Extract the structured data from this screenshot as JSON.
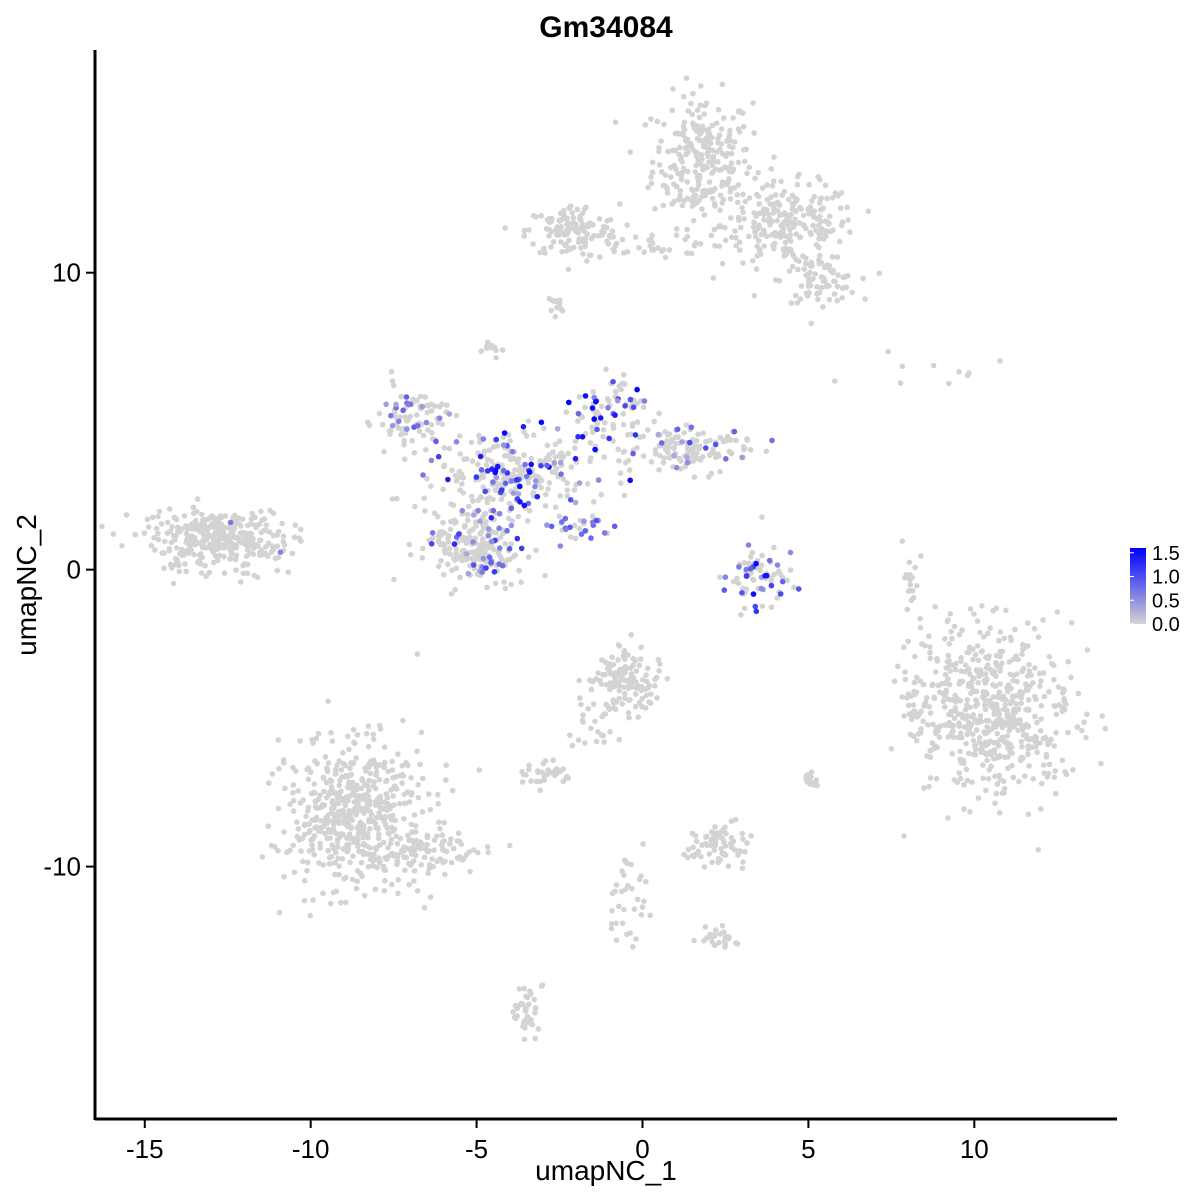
{
  "chart_data": {
    "type": "scatter",
    "title": "Gm34084",
    "xlabel": "umapNC_1",
    "ylabel": "umapNC_2",
    "xlim": [
      -16.5,
      14.3
    ],
    "ylim": [
      -18.5,
      17.5
    ],
    "x_ticks": [
      -15,
      -10,
      -5,
      0,
      5,
      10
    ],
    "x_tick_labels": [
      "-15",
      "-10",
      "-5",
      "0",
      "5",
      "10"
    ],
    "y_ticks": [
      -10,
      0,
      10
    ],
    "y_tick_labels": [
      "-10",
      "0",
      "10"
    ],
    "grid": false,
    "legend": {
      "position": "right",
      "type": "colorbar",
      "min": 0.0,
      "max": 1.6,
      "breaks": [
        0.0,
        0.5,
        1.0,
        1.5
      ],
      "break_labels": [
        "0.0",
        "0.5",
        "1.0",
        "1.5"
      ],
      "low_color": "#d3d3d3",
      "high_color": "#0000ff"
    },
    "point_color_zero": "#d3d3d3",
    "clusters": [
      {
        "name": "top-right",
        "cx": 1.8,
        "cy": 13.8,
        "sx": 0.75,
        "sy": 1.1,
        "n": 260,
        "expr_rate": 0,
        "expr_max": 0
      },
      {
        "name": "top-right-arm",
        "cx": 4.4,
        "cy": 11.6,
        "sx": 1.0,
        "sy": 0.7,
        "n": 230,
        "expr_rate": 0,
        "expr_max": 0
      },
      {
        "name": "top-right-tail",
        "cx": 5.4,
        "cy": 9.7,
        "sx": 0.55,
        "sy": 0.35,
        "n": 70,
        "expr_rate": 0,
        "expr_max": 0
      },
      {
        "name": "top-left-lobe",
        "cx": -2.1,
        "cy": 11.4,
        "sx": 0.7,
        "sy": 0.45,
        "n": 130,
        "expr_rate": 0,
        "expr_max": 0
      },
      {
        "name": "top-bridge",
        "cx": 0.3,
        "cy": 11.0,
        "sx": 1.1,
        "sy": 0.25,
        "n": 40,
        "expr_rate": 0,
        "expr_max": 0
      },
      {
        "name": "top-small",
        "cx": -2.7,
        "cy": 8.8,
        "sx": 0.2,
        "sy": 0.25,
        "n": 12,
        "expr_rate": 0,
        "expr_max": 0
      },
      {
        "name": "far-left",
        "cx": -12.8,
        "cy": 1.0,
        "sx": 1.05,
        "sy": 0.5,
        "n": 340,
        "expr_rate": 0.004,
        "expr_max": 0.9
      },
      {
        "name": "center-left-arm",
        "cx": -6.8,
        "cy": 5.0,
        "sx": 0.6,
        "sy": 0.5,
        "n": 90,
        "expr_rate": 0.2,
        "expr_max": 0.9
      },
      {
        "name": "center-core",
        "cx": -3.8,
        "cy": 3.2,
        "sx": 1.2,
        "sy": 0.7,
        "n": 260,
        "expr_rate": 0.22,
        "expr_max": 1.6
      },
      {
        "name": "center-lower-lobe",
        "cx": -5.0,
        "cy": 0.8,
        "sx": 0.75,
        "sy": 0.75,
        "n": 230,
        "expr_rate": 0.1,
        "expr_max": 1.3
      },
      {
        "name": "center-top-lobe",
        "cx": -1.0,
        "cy": 5.3,
        "sx": 0.55,
        "sy": 0.55,
        "n": 80,
        "expr_rate": 0.3,
        "expr_max": 1.6
      },
      {
        "name": "center-right-arm",
        "cx": 1.4,
        "cy": 4.0,
        "sx": 1.0,
        "sy": 0.35,
        "n": 140,
        "expr_rate": 0.12,
        "expr_max": 1.1
      },
      {
        "name": "center-diagonal-tail",
        "cx": -2.0,
        "cy": 1.4,
        "sx": 0.55,
        "sy": 0.3,
        "n": 30,
        "expr_rate": 0.5,
        "expr_max": 1.0
      },
      {
        "name": "small-ring",
        "cx": 3.4,
        "cy": -0.2,
        "sx": 0.55,
        "sy": 0.55,
        "n": 75,
        "expr_rate": 0.35,
        "expr_max": 1.6
      },
      {
        "name": "far-right",
        "cx": 10.6,
        "cy": -4.8,
        "sx": 1.2,
        "sy": 1.5,
        "n": 560,
        "expr_rate": 0,
        "expr_max": 0
      },
      {
        "name": "far-right-small",
        "cx": 8.3,
        "cy": -4.5,
        "sx": 0.2,
        "sy": 0.6,
        "n": 25,
        "expr_rate": 0,
        "expr_max": 0
      },
      {
        "name": "right-thin",
        "cx": 8.1,
        "cy": -0.4,
        "sx": 0.15,
        "sy": 0.6,
        "n": 20,
        "expr_rate": 0,
        "expr_max": 0
      },
      {
        "name": "bottom-left",
        "cx": -8.7,
        "cy": -8.2,
        "sx": 1.0,
        "sy": 1.25,
        "n": 560,
        "expr_rate": 0.002,
        "expr_max": 0.5
      },
      {
        "name": "bottom-left-tail",
        "cx": -6.4,
        "cy": -9.5,
        "sx": 0.9,
        "sy": 0.35,
        "n": 80,
        "expr_rate": 0,
        "expr_max": 0
      },
      {
        "name": "bottom-center",
        "cx": -0.5,
        "cy": -3.8,
        "sx": 0.55,
        "sy": 0.55,
        "n": 130,
        "expr_rate": 0,
        "expr_max": 0
      },
      {
        "name": "bottom-center-arm",
        "cx": -1.6,
        "cy": -5.4,
        "sx": 0.45,
        "sy": 0.4,
        "n": 20,
        "expr_rate": 0,
        "expr_max": 0
      },
      {
        "name": "bottom-center-2",
        "cx": -3.0,
        "cy": -6.9,
        "sx": 0.4,
        "sy": 0.2,
        "n": 35,
        "expr_rate": 0,
        "expr_max": 0
      },
      {
        "name": "bottom-right-small",
        "cx": 2.3,
        "cy": -9.3,
        "sx": 0.45,
        "sy": 0.35,
        "n": 70,
        "expr_rate": 0.01,
        "expr_max": 0.6
      },
      {
        "name": "bottom-stream",
        "cx": -0.4,
        "cy": -11.0,
        "sx": 0.3,
        "sy": 0.8,
        "n": 35,
        "expr_rate": 0,
        "expr_max": 0
      },
      {
        "name": "bottom-stream-2",
        "cx": 2.3,
        "cy": -12.4,
        "sx": 0.3,
        "sy": 0.2,
        "n": 25,
        "expr_rate": 0,
        "expr_max": 0
      },
      {
        "name": "bottom-low",
        "cx": -3.5,
        "cy": -14.8,
        "sx": 0.2,
        "sy": 0.5,
        "n": 40,
        "expr_rate": 0,
        "expr_max": 0
      },
      {
        "name": "small-mid-right",
        "cx": 5.0,
        "cy": -7.2,
        "sx": 0.15,
        "sy": 0.15,
        "n": 15,
        "expr_rate": 0,
        "expr_max": 0
      },
      {
        "name": "small-right-scatter",
        "cx": 8.8,
        "cy": 6.7,
        "sx": 1.0,
        "sy": 0.3,
        "n": 10,
        "expr_rate": 0,
        "expr_max": 0
      },
      {
        "name": "top-mid-small",
        "cx": -4.5,
        "cy": 7.4,
        "sx": 0.2,
        "sy": 0.15,
        "n": 12,
        "expr_rate": 0,
        "expr_max": 0
      }
    ]
  }
}
